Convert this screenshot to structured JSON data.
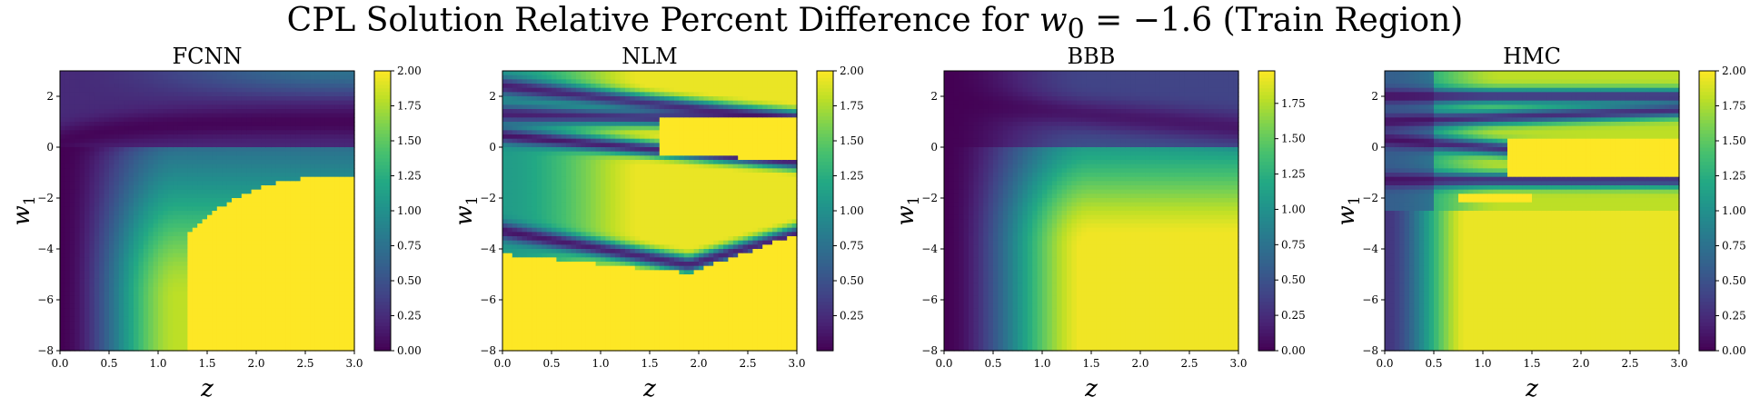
{
  "figure": {
    "title_prefix": "CPL Solution Relative Percent Difference for ",
    "title_math": "w",
    "title_sub": "0",
    "title_eq": " = −1.6",
    "title_suffix": " (Train Region)"
  },
  "colormap": "viridis",
  "colors": {
    "viridis": [
      "#440154",
      "#482475",
      "#414487",
      "#355f8d",
      "#2a788e",
      "#21918c",
      "#22a884",
      "#44bf70",
      "#7ad151",
      "#bddf26",
      "#fde725"
    ]
  },
  "chart_data": [
    {
      "type": "heatmap",
      "title": "FCNN",
      "xlabel": "z",
      "ylabel": "w1",
      "xlim": [
        0,
        3
      ],
      "ylim": [
        -8,
        3
      ],
      "xticks": [
        "0.0",
        "0.5",
        "1.0",
        "1.5",
        "2.0",
        "2.5",
        "3.0"
      ],
      "xtick_values": [
        0,
        0.5,
        1,
        1.5,
        2,
        2.5,
        3
      ],
      "yticks": [
        "2",
        "0",
        "−2",
        "−4",
        "−6",
        "−8"
      ],
      "ytick_values": [
        2,
        0,
        -2,
        -4,
        -6,
        -8
      ],
      "colorbar": {
        "min": 0,
        "max": 2,
        "ticks": [
          "0.00",
          "0.25",
          "0.50",
          "0.75",
          "1.00",
          "1.25",
          "1.50",
          "1.75",
          "2.00"
        ],
        "tick_values": [
          0,
          0.25,
          0.5,
          0.75,
          1,
          1.25,
          1.5,
          1.75,
          2
        ]
      },
      "pattern": "fcnn"
    },
    {
      "type": "heatmap",
      "title": "NLM",
      "xlabel": "z",
      "ylabel": "w1",
      "xlim": [
        0,
        3
      ],
      "ylim": [
        -8,
        3
      ],
      "xticks": [
        "0.0",
        "0.5",
        "1.0",
        "1.5",
        "2.0",
        "2.5",
        "3.0"
      ],
      "xtick_values": [
        0,
        0.5,
        1,
        1.5,
        2,
        2.5,
        3
      ],
      "yticks": [
        "2",
        "0",
        "−2",
        "−4",
        "−6",
        "−8"
      ],
      "ytick_values": [
        2,
        0,
        -2,
        -4,
        -6,
        -8
      ],
      "colorbar": {
        "min": 0,
        "max": 2,
        "ticks": [
          "0.25",
          "0.50",
          "0.75",
          "1.00",
          "1.25",
          "1.50",
          "1.75",
          "2.00"
        ],
        "tick_values": [
          0.25,
          0.5,
          0.75,
          1,
          1.25,
          1.5,
          1.75,
          2
        ]
      },
      "pattern": "nlm"
    },
    {
      "type": "heatmap",
      "title": "BBB",
      "xlabel": "z",
      "ylabel": "w1",
      "xlim": [
        0,
        3
      ],
      "ylim": [
        -8,
        3
      ],
      "xticks": [
        "0.0",
        "0.5",
        "1.0",
        "1.5",
        "2.0",
        "2.5",
        "3.0"
      ],
      "xtick_values": [
        0,
        0.5,
        1,
        1.5,
        2,
        2.5,
        3
      ],
      "yticks": [
        "2",
        "0",
        "−2",
        "−4",
        "−6",
        "−8"
      ],
      "ytick_values": [
        2,
        0,
        -2,
        -4,
        -6,
        -8
      ],
      "colorbar": {
        "min": 0,
        "max": 1.98,
        "ticks": [
          "0.00",
          "0.25",
          "0.50",
          "0.75",
          "1.00",
          "1.25",
          "1.50",
          "1.75"
        ],
        "tick_values": [
          0,
          0.25,
          0.5,
          0.75,
          1,
          1.25,
          1.5,
          1.75
        ]
      },
      "pattern": "bbb"
    },
    {
      "type": "heatmap",
      "title": "HMC",
      "xlabel": "z",
      "ylabel": "w1",
      "xlim": [
        0,
        3
      ],
      "ylim": [
        -8,
        3
      ],
      "xticks": [
        "0.0",
        "0.5",
        "1.0",
        "1.5",
        "2.0",
        "2.5",
        "3.0"
      ],
      "xtick_values": [
        0,
        0.5,
        1,
        1.5,
        2,
        2.5,
        3
      ],
      "yticks": [
        "2",
        "0",
        "−2",
        "−4",
        "−6",
        "−8"
      ],
      "ytick_values": [
        2,
        0,
        -2,
        -4,
        -6,
        -8
      ],
      "colorbar": {
        "min": 0,
        "max": 2,
        "ticks": [
          "0.00",
          "0.25",
          "0.50",
          "0.75",
          "1.00",
          "1.25",
          "1.50",
          "1.75",
          "2.00"
        ],
        "tick_values": [
          0,
          0.25,
          0.5,
          0.75,
          1,
          1.25,
          1.5,
          1.75,
          2
        ]
      },
      "pattern": "hmc"
    }
  ]
}
